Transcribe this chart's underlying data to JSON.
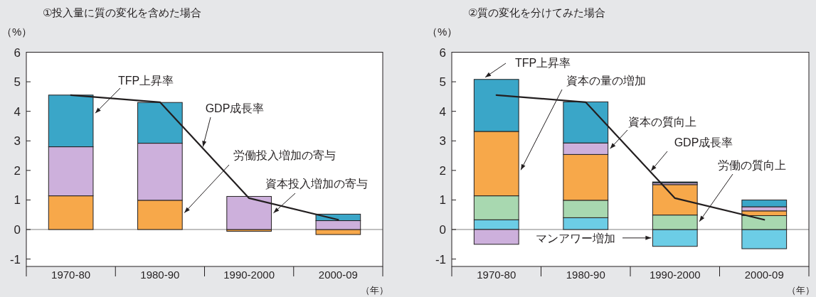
{
  "chart_data": [
    {
      "type": "bar",
      "stacked": true,
      "title": "①投入量に質の変化を含めた場合",
      "ylabel": "（%）",
      "xlabel": "（年）",
      "categories": [
        "1970-80",
        "1980-90",
        "1990-2000",
        "2000-09"
      ],
      "ylim": [
        -1.25,
        6
      ],
      "yticks": [
        -1,
        0,
        1,
        2,
        3,
        4,
        5,
        6
      ],
      "series": [
        {
          "name": "労働投入増加の寄与",
          "color": "#f7a84a",
          "values": [
            1.14,
            0.99,
            -0.06,
            -0.17
          ]
        },
        {
          "name": "資本投入増加の寄与",
          "color": "#cdb0dc",
          "values": [
            1.66,
            1.93,
            1.12,
            0.3
          ]
        },
        {
          "name": "TFP上昇率",
          "color": "#3aa6c8",
          "values": [
            1.75,
            1.38,
            0,
            0.22
          ]
        },
        {
          "type": "line",
          "name": "GDP成長率",
          "color": "#231f20",
          "marker": "none",
          "values": [
            4.55,
            4.31,
            1.06,
            0.33
          ]
        }
      ]
    },
    {
      "type": "bar",
      "stacked": true,
      "title": "②質の変化を分けてみた場合",
      "ylabel": "（%）",
      "xlabel": "（年）",
      "categories": [
        "1970-80",
        "1980-90",
        "1990-2000",
        "2000-09"
      ],
      "ylim": [
        -1.25,
        6
      ],
      "yticks": [
        -1,
        0,
        1,
        2,
        3,
        4,
        5,
        6
      ],
      "series": [
        {
          "name": "マンアワー増加",
          "color": "#6ccde6",
          "values": [
            0.33,
            0.4,
            -0.57,
            -0.65
          ]
        },
        {
          "name": "労働の質向上",
          "color": "#a8d8b0",
          "values": [
            0.81,
            0.59,
            0.49,
            0.47
          ]
        },
        {
          "name": "資本の量の増加",
          "color": "#f7a84a",
          "values": [
            2.18,
            1.55,
            1.03,
            0.16
          ]
        },
        {
          "name": "資本の質向上",
          "color": "#cdb0dc",
          "values": [
            -0.5,
            0.39,
            0.06,
            0.14
          ]
        },
        {
          "name": "TFP上昇率",
          "color": "#3aa6c8",
          "values": [
            1.76,
            1.39,
            0.03,
            0.23
          ]
        },
        {
          "type": "line",
          "name": "GDP成長率",
          "color": "#231f20",
          "marker": "none",
          "values": [
            4.55,
            4.31,
            1.06,
            0.33
          ]
        }
      ]
    }
  ]
}
